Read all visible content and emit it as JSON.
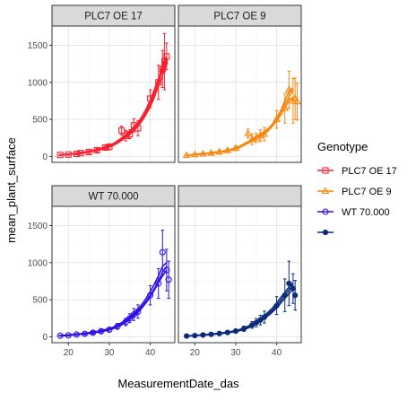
{
  "chart_data": {
    "type": "line",
    "xlabel": "MeasurementDate_das",
    "ylabel": "mean_plant_surface",
    "xlim": [
      16,
      46
    ],
    "ylim": [
      -80,
      1760
    ],
    "x_ticks": [
      20,
      30,
      40
    ],
    "y_ticks": [
      0,
      500,
      1000,
      1500
    ],
    "grid": true,
    "legend": {
      "title": "Genotype",
      "placement": "right",
      "entries": [
        {
          "label": "PLC7 OE 17",
          "color": "#f8202e",
          "shape": "square-open"
        },
        {
          "label": "PLC7 OE 9",
          "color": "#f7870f",
          "shape": "triangle-open"
        },
        {
          "label": "WT 70.000",
          "color": "#2f0fe8",
          "shape": "circle-open"
        },
        {
          "label": "",
          "color": "#0a2a7a",
          "shape": "circle-filled"
        }
      ]
    },
    "panels": [
      {
        "strip": "PLC7 OE 17",
        "color": "#f8202e",
        "shape": "square-open",
        "x": [
          18,
          19,
          20,
          21,
          22,
          23,
          24,
          25,
          26,
          27,
          28,
          29,
          30,
          31,
          32,
          33,
          34,
          35,
          36,
          37,
          38,
          39,
          40,
          41,
          42,
          43,
          44
        ],
        "lines": [
          [
            20,
            25,
            30,
            35,
            40,
            50,
            55,
            65,
            75,
            85,
            100,
            120,
            140,
            160,
            190,
            230,
            270,
            320,
            370,
            430,
            500,
            600,
            700,
            850,
            1000,
            1200,
            1330
          ],
          [
            22,
            27,
            32,
            38,
            45,
            52,
            60,
            70,
            80,
            95,
            110,
            130,
            150,
            175,
            210,
            250,
            290,
            340,
            400,
            460,
            540,
            640,
            760,
            900,
            1050,
            1150,
            1300
          ],
          [
            18,
            23,
            28,
            33,
            38,
            45,
            52,
            60,
            70,
            80,
            95,
            110,
            125,
            150,
            180,
            215,
            255,
            300,
            350,
            410,
            480,
            570,
            670,
            800,
            950,
            1100,
            1250
          ],
          [
            21,
            26,
            31,
            36,
            42,
            48,
            56,
            66,
            78,
            90,
            105,
            125,
            145,
            170,
            200,
            240,
            280,
            330,
            390,
            450,
            520,
            620,
            730,
            870,
            1020,
            1250,
            1350
          ]
        ],
        "points": [
          {
            "x": 18,
            "y": 20,
            "err": 10
          },
          {
            "x": 20,
            "y": 25,
            "err": 10
          },
          {
            "x": 22,
            "y": 35,
            "err": 12
          },
          {
            "x": 23,
            "y": 45,
            "err": 14
          },
          {
            "x": 25,
            "y": 60,
            "err": 20
          },
          {
            "x": 27,
            "y": 85,
            "err": 25
          },
          {
            "x": 29,
            "y": 120,
            "err": 30
          },
          {
            "x": 30,
            "y": 130,
            "err": 40
          },
          {
            "x": 33,
            "y": 350,
            "err": 60
          },
          {
            "x": 34,
            "y": 280,
            "err": 70
          },
          {
            "x": 35,
            "y": 300,
            "err": 60
          },
          {
            "x": 36,
            "y": 420,
            "err": 90
          },
          {
            "x": 37,
            "y": 380,
            "err": 100
          },
          {
            "x": 40,
            "y": 780,
            "err": 120
          },
          {
            "x": 42,
            "y": 1000,
            "err": 230
          },
          {
            "x": 43,
            "y": 1180,
            "err": 250
          },
          {
            "x": 43.5,
            "y": 1280,
            "err": 380
          },
          {
            "x": 44,
            "y": 1350,
            "err": 180
          }
        ]
      },
      {
        "strip": "PLC7 OE 9",
        "color": "#f7870f",
        "shape": "triangle-open",
        "x": [
          18,
          19,
          20,
          21,
          22,
          23,
          24,
          25,
          26,
          27,
          28,
          29,
          30,
          31,
          32,
          33,
          34,
          35,
          36,
          37,
          38,
          39,
          40,
          41,
          42,
          43,
          44
        ],
        "lines": [
          [
            15,
            20,
            25,
            30,
            35,
            40,
            47,
            55,
            62,
            70,
            80,
            92,
            105,
            130,
            160,
            190,
            220,
            250,
            280,
            320,
            370,
            430,
            500,
            600,
            700,
            800,
            900
          ],
          [
            18,
            22,
            28,
            33,
            38,
            44,
            50,
            58,
            66,
            75,
            86,
            100,
            115,
            140,
            170,
            200,
            230,
            270,
            300,
            340,
            380,
            440,
            520,
            620,
            750,
            880,
            920
          ],
          [
            12,
            17,
            22,
            27,
            32,
            37,
            42,
            50,
            58,
            65,
            75,
            88,
            100,
            120,
            150,
            180,
            210,
            240,
            270,
            300,
            350,
            410,
            480,
            560,
            650,
            760,
            800
          ]
        ],
        "points": [
          {
            "x": 18,
            "y": 15,
            "err": 8
          },
          {
            "x": 20,
            "y": 25,
            "err": 10
          },
          {
            "x": 22,
            "y": 35,
            "err": 12
          },
          {
            "x": 24,
            "y": 45,
            "err": 15
          },
          {
            "x": 26,
            "y": 60,
            "err": 20
          },
          {
            "x": 28,
            "y": 80,
            "err": 25
          },
          {
            "x": 30,
            "y": 110,
            "err": 30
          },
          {
            "x": 33,
            "y": 310,
            "err": 60
          },
          {
            "x": 34,
            "y": 230,
            "err": 70
          },
          {
            "x": 35,
            "y": 250,
            "err": 60
          },
          {
            "x": 36,
            "y": 280,
            "err": 80
          },
          {
            "x": 37,
            "y": 300,
            "err": 90
          },
          {
            "x": 40,
            "y": 500,
            "err": 120
          },
          {
            "x": 42,
            "y": 650,
            "err": 200
          },
          {
            "x": 43,
            "y": 900,
            "err": 250
          },
          {
            "x": 44,
            "y": 750,
            "err": 300
          },
          {
            "x": 44.5,
            "y": 780,
            "err": 280
          },
          {
            "x": 45,
            "y": 740,
            "err": 250
          }
        ]
      },
      {
        "strip": "WT 70.000",
        "color": "#2f0fe8",
        "shape": "circle-open",
        "x": [
          18,
          19,
          20,
          21,
          22,
          23,
          24,
          25,
          26,
          27,
          28,
          29,
          30,
          31,
          32,
          33,
          34,
          35,
          36,
          37,
          38,
          39,
          40,
          41,
          42,
          43,
          44
        ],
        "lines": [
          [
            15,
            18,
            22,
            27,
            32,
            37,
            43,
            50,
            57,
            65,
            75,
            87,
            100,
            120,
            145,
            175,
            210,
            250,
            300,
            350,
            410,
            480,
            560,
            650,
            750,
            870,
            950
          ],
          [
            18,
            21,
            25,
            30,
            35,
            41,
            48,
            55,
            63,
            72,
            83,
            96,
            110,
            130,
            158,
            190,
            228,
            270,
            320,
            375,
            440,
            520,
            610,
            710,
            820,
            950,
            1000
          ],
          [
            12,
            15,
            19,
            24,
            29,
            34,
            39,
            45,
            52,
            60,
            70,
            80,
            92,
            110,
            132,
            160,
            195,
            235,
            280,
            330,
            390,
            460,
            540,
            630,
            730,
            820,
            900
          ]
        ],
        "points": [
          {
            "x": 18,
            "y": 15,
            "err": 8
          },
          {
            "x": 20,
            "y": 20,
            "err": 10
          },
          {
            "x": 22,
            "y": 30,
            "err": 12
          },
          {
            "x": 24,
            "y": 40,
            "err": 15
          },
          {
            "x": 26,
            "y": 55,
            "err": 20
          },
          {
            "x": 28,
            "y": 75,
            "err": 25
          },
          {
            "x": 30,
            "y": 95,
            "err": 30
          },
          {
            "x": 32,
            "y": 140,
            "err": 40
          },
          {
            "x": 34,
            "y": 200,
            "err": 50
          },
          {
            "x": 35,
            "y": 250,
            "err": 60
          },
          {
            "x": 36,
            "y": 300,
            "err": 80
          },
          {
            "x": 37,
            "y": 340,
            "err": 90
          },
          {
            "x": 40,
            "y": 560,
            "err": 130
          },
          {
            "x": 42,
            "y": 720,
            "err": 200
          },
          {
            "x": 43,
            "y": 1140,
            "err": 300
          },
          {
            "x": 44,
            "y": 900,
            "err": 280
          },
          {
            "x": 44.5,
            "y": 770,
            "err": 250
          }
        ]
      },
      {
        "strip": "",
        "color": "#0a2a7a",
        "shape": "circle-filled",
        "x": [
          18,
          19,
          20,
          21,
          22,
          23,
          24,
          25,
          26,
          27,
          28,
          29,
          30,
          31,
          32,
          33,
          34,
          35,
          36,
          37,
          38,
          39,
          40,
          41,
          42,
          43,
          44
        ],
        "lines": [
          [
            10,
            13,
            16,
            20,
            24,
            28,
            33,
            38,
            44,
            50,
            58,
            67,
            77,
            90,
            108,
            130,
            158,
            190,
            225,
            265,
            310,
            360,
            420,
            490,
            560,
            630,
            700
          ],
          [
            12,
            15,
            18,
            22,
            26,
            31,
            36,
            42,
            48,
            55,
            63,
            73,
            84,
            98,
            118,
            142,
            172,
            207,
            245,
            288,
            335,
            390,
            455,
            530,
            600,
            670,
            720
          ],
          [
            8,
            11,
            14,
            17,
            21,
            25,
            29,
            34,
            40,
            46,
            53,
            61,
            70,
            82,
            98,
            118,
            144,
            174,
            208,
            245,
            288,
            335,
            390,
            455,
            520,
            580,
            650
          ]
        ],
        "points": [
          {
            "x": 18,
            "y": 10,
            "err": 6
          },
          {
            "x": 20,
            "y": 16,
            "err": 8
          },
          {
            "x": 22,
            "y": 24,
            "err": 10
          },
          {
            "x": 24,
            "y": 33,
            "err": 12
          },
          {
            "x": 26,
            "y": 44,
            "err": 15
          },
          {
            "x": 28,
            "y": 58,
            "err": 20
          },
          {
            "x": 30,
            "y": 77,
            "err": 25
          },
          {
            "x": 32,
            "y": 108,
            "err": 35
          },
          {
            "x": 34,
            "y": 160,
            "err": 45
          },
          {
            "x": 35,
            "y": 190,
            "err": 55
          },
          {
            "x": 36,
            "y": 225,
            "err": 65
          },
          {
            "x": 37,
            "y": 265,
            "err": 80
          },
          {
            "x": 40,
            "y": 420,
            "err": 120
          },
          {
            "x": 42,
            "y": 560,
            "err": 220
          },
          {
            "x": 43,
            "y": 720,
            "err": 300
          },
          {
            "x": 44,
            "y": 650,
            "err": 200
          },
          {
            "x": 44.5,
            "y": 560,
            "err": 200
          }
        ]
      }
    ]
  }
}
